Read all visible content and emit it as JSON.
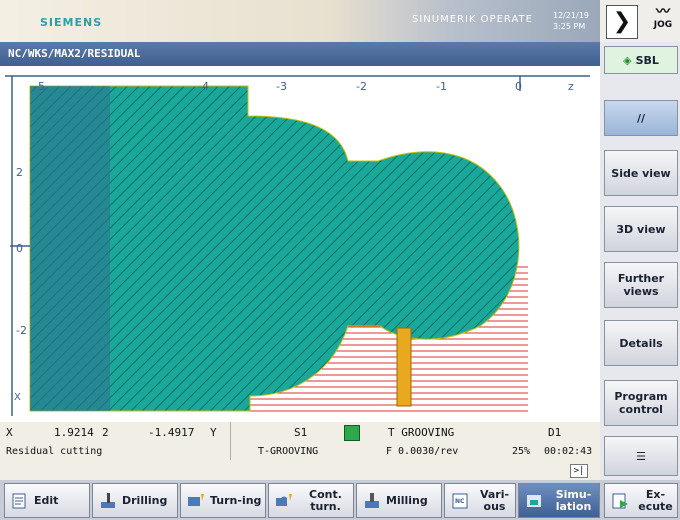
{
  "header": {
    "brand": "SIEMENS",
    "product": "SINUMERIK OPERATE",
    "date": "12/21/19",
    "time": "3:25 PM",
    "mode": "JOG"
  },
  "window": {
    "title": "NC/WKS/MAX2/RESIDUAL"
  },
  "simulation": {
    "axis_labels": [
      "-5",
      "-4",
      "-3",
      "-2",
      "-1",
      "0"
    ],
    "axis_unit": "z",
    "y_labels": [
      "2",
      "0",
      "-2"
    ],
    "origin_label": "X",
    "colors": {
      "stock": "#1aa89a",
      "residual": "#e03030",
      "tool": "#e8a820",
      "grid_shade": "#3a7fa0"
    }
  },
  "status": {
    "x_label": "X",
    "x_value": "1.9214",
    "z_value": "2",
    "y_value": "-1.4917",
    "y_label": "Y",
    "spindle": "S1",
    "tool": "T GROOVING",
    "d_number": "D1",
    "cycle": "Residual cutting",
    "tool_short": "T-GROOVING",
    "feed": "F 0.0030/rev",
    "override": "25%",
    "elapsed": "00:02:43"
  },
  "sidebar": [
    {
      "label": "SBL"
    },
    {
      "label": "//"
    },
    {
      "label": "Side view"
    },
    {
      "label": "3D view"
    },
    {
      "label": "Further views"
    },
    {
      "label": "Details"
    },
    {
      "label": "Program control"
    }
  ],
  "softkeys": [
    {
      "label": "Edit"
    },
    {
      "label": "Drilling"
    },
    {
      "label": "Turn-ing"
    },
    {
      "label": "Cont. turn."
    },
    {
      "label": "Milling"
    },
    {
      "label": "Vari-ous"
    },
    {
      "label": "Simu-lation"
    },
    {
      "label": "Ex-ecute"
    }
  ]
}
